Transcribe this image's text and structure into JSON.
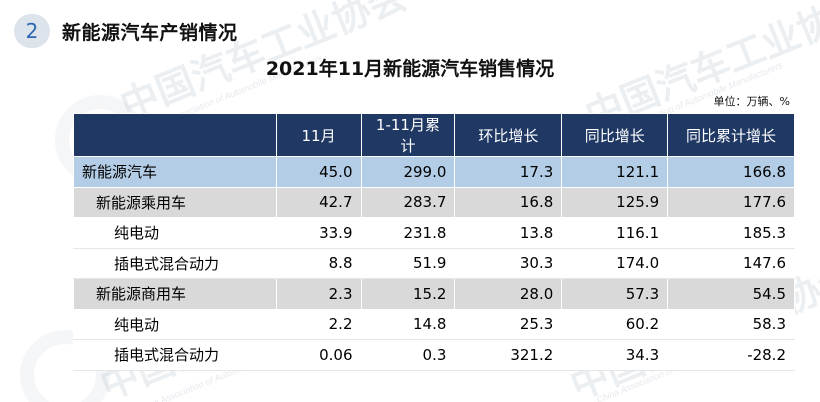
{
  "watermark": {
    "org_cn": "中国汽车工业协会",
    "org_en": "China Association of Automobile Manufacturers",
    "colors": {
      "text": "#aab4c3"
    }
  },
  "section": {
    "number": "2",
    "title": "新能源汽车产销情况"
  },
  "document": {
    "title": "2021年11月新能源汽车销售情况",
    "unit_note": "单位：万辆、%"
  },
  "table": {
    "headers": [
      "",
      "11月",
      "1-11月累计",
      "环比增长",
      "同比增长",
      "同比累计增长"
    ],
    "rows": [
      {
        "name": "新能源汽车",
        "values": [
          "45.0",
          "299.0",
          "17.3",
          "121.1",
          "166.8"
        ]
      },
      {
        "name": "新能源乘用车",
        "values": [
          "42.7",
          "283.7",
          "16.8",
          "125.9",
          "177.6"
        ]
      },
      {
        "name": "纯电动",
        "values": [
          "33.9",
          "231.8",
          "13.8",
          "116.1",
          "185.3"
        ]
      },
      {
        "name": "插电式混合动力",
        "values": [
          "8.8",
          "51.9",
          "30.3",
          "174.0",
          "147.6"
        ]
      },
      {
        "name": "新能源商用车",
        "values": [
          "2.3",
          "15.2",
          "28.0",
          "57.3",
          "54.5"
        ]
      },
      {
        "name": "纯电动",
        "values": [
          "2.2",
          "14.8",
          "25.3",
          "60.2",
          "58.3"
        ]
      },
      {
        "name": "插电式混合动力",
        "values": [
          "0.06",
          "0.3",
          "321.2",
          "34.3",
          "-28.2"
        ]
      }
    ]
  },
  "colors": {
    "header_bg": "#1f3864",
    "total_row_bg": "#b4cde6",
    "category_row_bg": "#d9d9d9",
    "badge_bg": "#dde3ea",
    "badge_text": "#2b67b3"
  }
}
